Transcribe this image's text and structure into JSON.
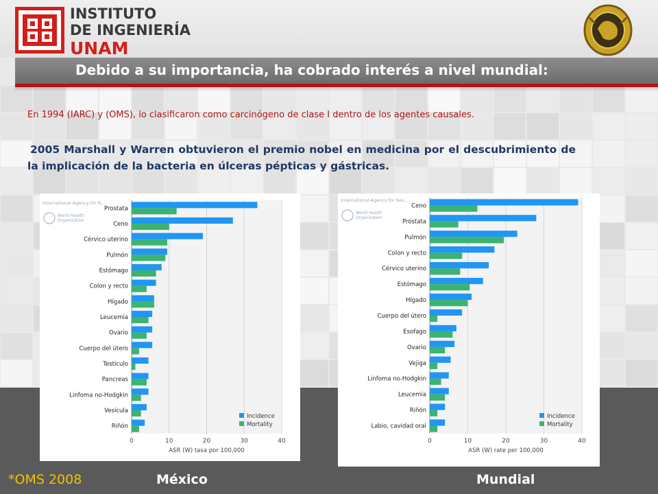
{
  "header": {
    "logo_lines": [
      "INSTITUTO",
      "DE INGENIERÍA",
      "UNAM"
    ],
    "title": "Debido a su importancia, ha cobrado interés a nivel mundial:"
  },
  "body": {
    "paragraph1": "En 1994 (IARC) y (OMS), lo clasificaron como carcinógeno de clase I dentro de los agentes causales.",
    "paragraph2": "2005 Marshall  y Warren obtuvieron el premio nobel en medicina por el descubrimiento de la implicación de la bacteria en úlceras pépticas y gástricas."
  },
  "footer": {
    "note": "*OMS 2008",
    "label_left": "México",
    "label_right": "Mundial"
  },
  "colors": {
    "incidence": "#2196f3",
    "mortality": "#3cb371",
    "accent_red": "#b01515"
  },
  "chart_data": [
    {
      "type": "bar",
      "orientation": "horizontal",
      "source_label": "International Agency for R...",
      "logo_text": [
        "World Health",
        "Organization"
      ],
      "categories": [
        "Prostata",
        "Ceno",
        "Cérvico uterino",
        "Pulmón",
        "Estómago",
        "Colon y recto",
        "Hígado",
        "Leucemia",
        "Ovario",
        "Cuerpo del útero",
        "Testículo",
        "Pancreas",
        "Linfoma no-Hodgkin",
        "Vesícula",
        "Riñón"
      ],
      "series": [
        {
          "name": "Incidence",
          "values": [
            33.5,
            27.0,
            19.0,
            9.5,
            8.0,
            6.5,
            6.0,
            5.5,
            5.5,
            5.5,
            4.5,
            4.5,
            4.5,
            4.0,
            3.5
          ]
        },
        {
          "name": "Mortality",
          "values": [
            12.0,
            10.0,
            9.5,
            9.0,
            6.5,
            4.0,
            6.0,
            4.5,
            4.0,
            2.0,
            1.0,
            4.0,
            2.5,
            2.5,
            2.0
          ]
        }
      ],
      "xlabel": "ASR (W) tasa por 100,000",
      "xlim": [
        0,
        40
      ],
      "xticks": [
        0,
        10,
        20,
        30,
        40
      ],
      "legend": [
        "Incidence",
        "Mortality"
      ],
      "legend_position": "bottom-right",
      "grid": true
    },
    {
      "type": "bar",
      "orientation": "horizontal",
      "source_label": "International Agency for Res...",
      "logo_text": [
        "World Health",
        "Organization"
      ],
      "categories": [
        "Ceno",
        "Próstata",
        "Pulmón",
        "Colon y recto",
        "Cérvico uterino",
        "Estómago",
        "Hígado",
        "Cuerpo del útero",
        "Esofago",
        "Ovario",
        "Vejiga",
        "Linfoma no-Hodgkin",
        "Leucemia",
        "Riñón",
        "Labio, cavidad oral"
      ],
      "series": [
        {
          "name": "Incidence",
          "values": [
            39.0,
            28.0,
            23.0,
            17.0,
            15.5,
            14.0,
            11.0,
            8.5,
            7.0,
            6.5,
            5.5,
            5.0,
            5.0,
            4.0,
            4.0
          ]
        },
        {
          "name": "Mortality",
          "values": [
            12.5,
            7.5,
            19.5,
            8.5,
            8.0,
            10.5,
            10.0,
            2.0,
            6.0,
            4.0,
            2.0,
            3.0,
            4.0,
            2.0,
            2.0
          ]
        }
      ],
      "xlabel": "ASR (W) rate per 100,000",
      "xlim": [
        0,
        40
      ],
      "xticks": [
        0,
        10,
        20,
        30,
        40
      ],
      "legend": [
        "Incidence",
        "Mortality"
      ],
      "legend_position": "bottom-right",
      "grid": true
    }
  ]
}
